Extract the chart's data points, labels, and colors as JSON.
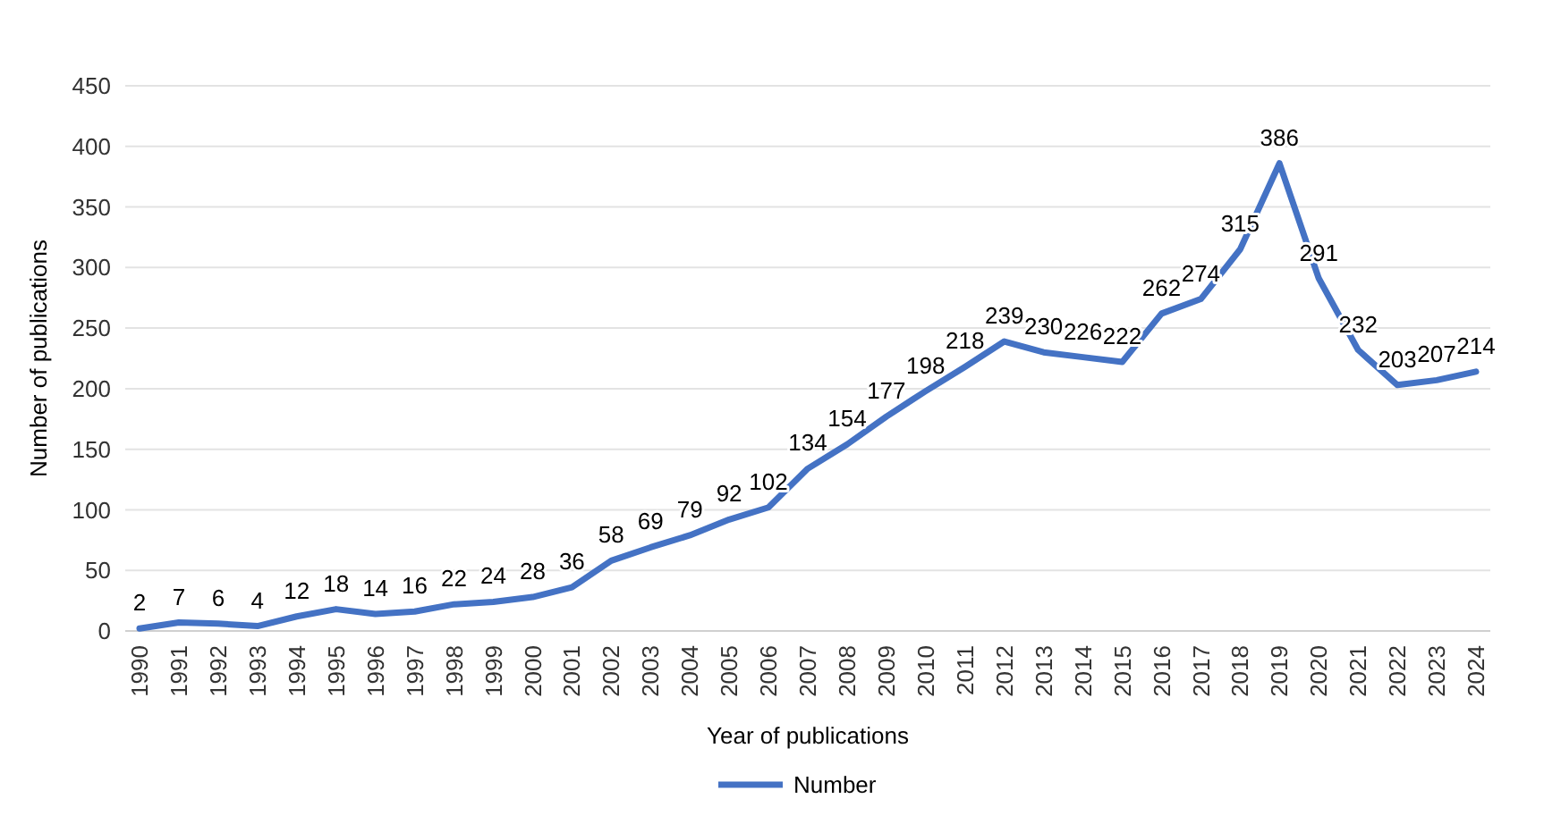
{
  "chart_data": {
    "type": "line",
    "xlabel": "Year of publications",
    "ylabel": "Number of publications",
    "categories": [
      "1990",
      "1991",
      "1992",
      "1993",
      "1994",
      "1995",
      "1996",
      "1997",
      "1998",
      "1999",
      "2000",
      "2001",
      "2002",
      "2003",
      "2004",
      "2005",
      "2006",
      "2007",
      "2008",
      "2009",
      "2010",
      "2011",
      "2012",
      "2013",
      "2014",
      "2015",
      "2016",
      "2017",
      "2018",
      "2019",
      "2020",
      "2021",
      "2022",
      "2023",
      "2024"
    ],
    "series": [
      {
        "name": "Number",
        "color": "#4472c4",
        "values": [
          2,
          7,
          6,
          4,
          12,
          18,
          14,
          16,
          22,
          24,
          28,
          36,
          58,
          69,
          79,
          92,
          102,
          134,
          154,
          177,
          198,
          218,
          239,
          230,
          226,
          222,
          262,
          274,
          315,
          386,
          291,
          232,
          203,
          207,
          214
        ]
      }
    ],
    "ylim": [
      0,
      450
    ],
    "yticks": [
      0,
      50,
      100,
      150,
      200,
      250,
      300,
      350,
      400,
      450
    ],
    "grid": "y",
    "legend": "bottom",
    "data_labels": true,
    "marker": "none",
    "line_style": "solid"
  }
}
